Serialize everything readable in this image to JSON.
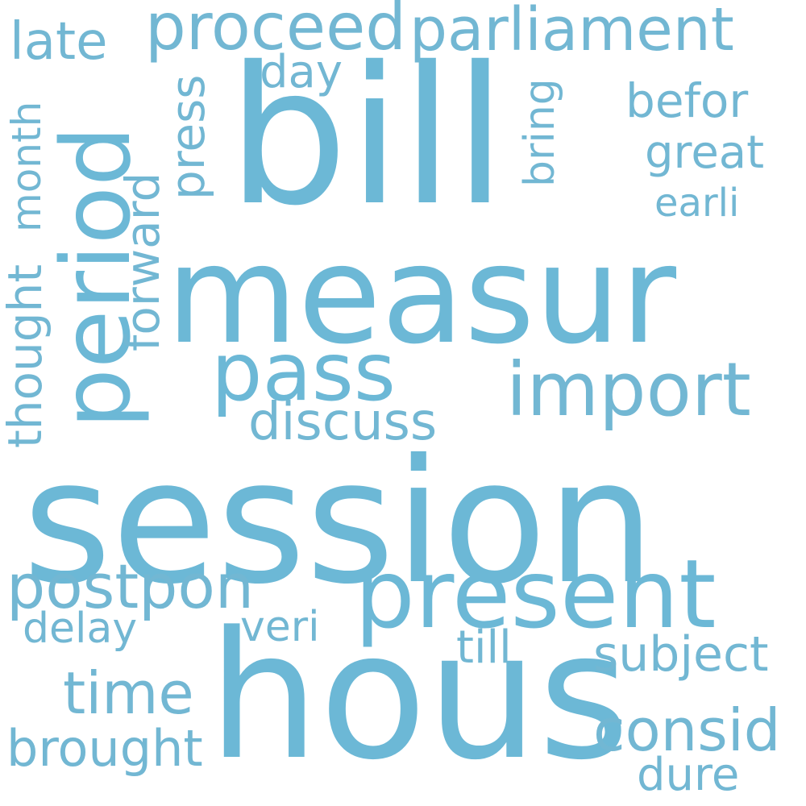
{
  "colors": {
    "background": "#ffffff",
    "word_primary": "#6cb8d6",
    "word_secondary": "#72b7d3"
  },
  "words": {
    "session": "session",
    "hous": "hous",
    "bill": "bill",
    "measur": "measur",
    "period": "period",
    "present": "present",
    "pass": "pass",
    "import": "import",
    "parliament": "parliament",
    "proceed": "proceed",
    "postpon": "postpon",
    "discuss": "discuss",
    "consid": "consid",
    "time": "time",
    "subject": "subject",
    "brought": "brought",
    "late": "late",
    "befor": "befor",
    "great": "great",
    "earli": "earli",
    "forward": "forward",
    "press": "press",
    "bring": "bring",
    "thought": "thought",
    "month": "month",
    "day": "day",
    "delay": "delay",
    "veri": "veri",
    "till": "till",
    "dure": "dure"
  }
}
